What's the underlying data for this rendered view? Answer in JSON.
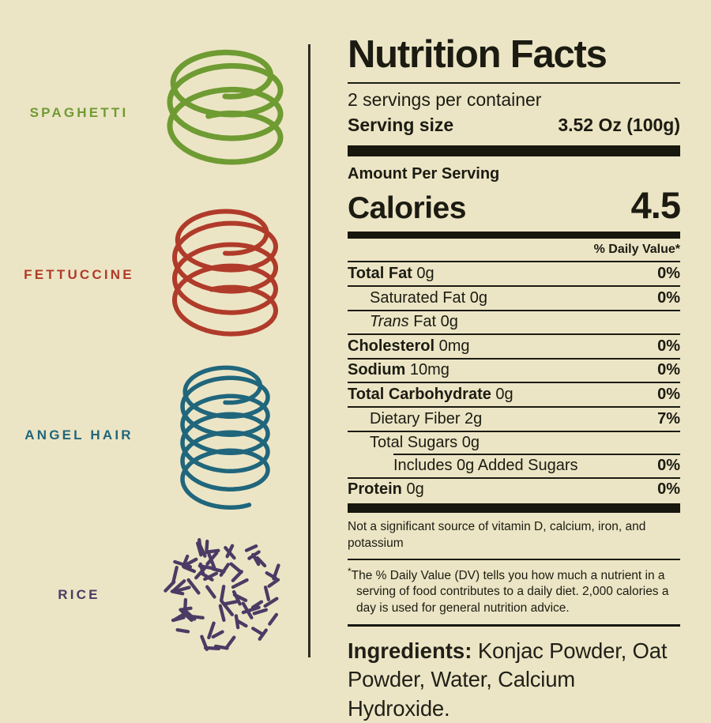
{
  "page": {
    "background": "#ece5c5",
    "divider_color": "#2d2d23",
    "ink_color": "#17170e"
  },
  "pasta_legend": {
    "items": [
      {
        "label": "SPAGHETTI",
        "color": "#6f9b33",
        "icon": "spaghetti-coil-icon"
      },
      {
        "label": "FETTUCCINE",
        "color": "#b03b2a",
        "icon": "fettuccine-coil-icon"
      },
      {
        "label": "ANGEL HAIR",
        "color": "#20667c",
        "icon": "angel-hair-coil-icon"
      },
      {
        "label": "RICE",
        "color": "#4b3b64",
        "icon": "rice-grains-icon"
      }
    ]
  },
  "nutrition_label": {
    "title": "Nutrition Facts",
    "servings_per_container": "2 servings per container",
    "serving_size_label": "Serving size",
    "serving_size_value": "3.52 Oz (100g)",
    "amount_per_serving": "Amount Per Serving",
    "calories_label": "Calories",
    "calories_value": "4.5",
    "daily_value_header": "% Daily Value*",
    "rows": [
      {
        "name": "Total Fat",
        "amount": "0g",
        "dv": "0%",
        "bold": true,
        "indent": 0
      },
      {
        "name": "Saturated Fat",
        "amount": "0g",
        "dv": "0%",
        "bold": false,
        "indent": 1
      },
      {
        "italic_prefix": "Trans",
        "name": "Fat",
        "amount": "0g",
        "dv": "",
        "bold": false,
        "indent": 1
      },
      {
        "name": "Cholesterol",
        "amount": "0mg",
        "dv": "0%",
        "bold": true,
        "indent": 0
      },
      {
        "name": "Sodium",
        "amount": "10mg",
        "dv": "0%",
        "bold": true,
        "indent": 0
      },
      {
        "name": "Total Carbohydrate",
        "amount": "0g",
        "dv": "0%",
        "bold": true,
        "indent": 0
      },
      {
        "name": "Dietary Fiber",
        "amount": "2g",
        "dv": "7%",
        "bold": false,
        "indent": 1
      },
      {
        "name": "Total Sugars",
        "amount": "0g",
        "dv": "",
        "bold": false,
        "indent": 1
      },
      {
        "name": "Includes 0g Added Sugars",
        "amount": "",
        "dv": "0%",
        "bold": false,
        "indent": 2,
        "inset_rule_top": true
      },
      {
        "name": "Protein",
        "amount": "0g",
        "dv": "0%",
        "bold": true,
        "indent": 0
      }
    ],
    "not_significant_note": "Not a significant source of vitamin D, calcium, iron, and potassium",
    "dv_footnote_marker": "*",
    "dv_footnote": "The % Daily Value (DV) tells you how much a nutrient in a serving of food contributes to a daily diet. 2,000 calories a day is used for general nutrition advice.",
    "ingredients_label": "Ingredients:",
    "ingredients_value": "Konjac Powder, Oat Powder, Water, Calcium Hydroxide."
  }
}
